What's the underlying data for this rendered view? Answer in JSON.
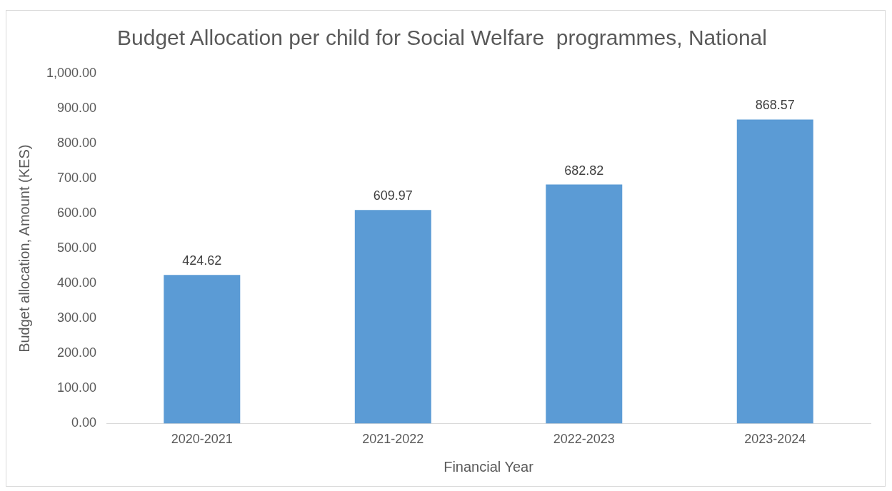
{
  "chart_data": {
    "type": "bar",
    "title": "Budget Allocation per child for Social Welfare  programmes, National",
    "xlabel": "Financial Year",
    "ylabel": "Budget allocation, Amount (KES)",
    "categories": [
      "2020-2021",
      "2021-2022",
      "2022-2023",
      "2023-2024"
    ],
    "values": [
      424.62,
      609.97,
      682.82,
      868.57
    ],
    "color": "#5b9bd5",
    "ylim": [
      0,
      1000
    ],
    "yticks": [
      {
        "value": 0,
        "label": "0.00"
      },
      {
        "value": 100,
        "label": "100.00"
      },
      {
        "value": 200,
        "label": "200.00"
      },
      {
        "value": 300,
        "label": "300.00"
      },
      {
        "value": 400,
        "label": "400.00"
      },
      {
        "value": 500,
        "label": "500.00"
      },
      {
        "value": 600,
        "label": "600.00"
      },
      {
        "value": 700,
        "label": "700.00"
      },
      {
        "value": 800,
        "label": "800.00"
      },
      {
        "value": 900,
        "label": "900.00"
      },
      {
        "value": 1000,
        "label": "1,000.00"
      }
    ],
    "grid": false,
    "legend": false,
    "data_labels": true
  }
}
